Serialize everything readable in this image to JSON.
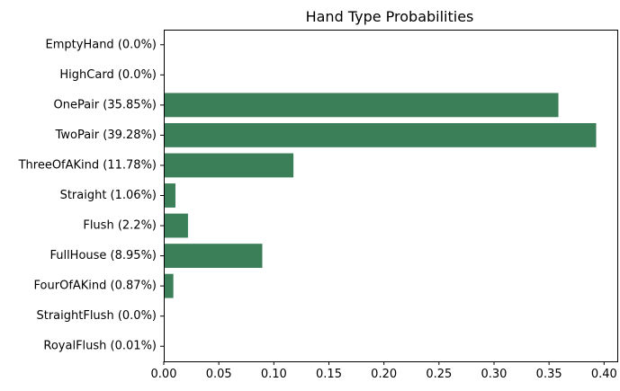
{
  "chart_data": {
    "type": "bar",
    "orientation": "horizontal",
    "title": "Hand Type Probabilities",
    "xlabel": "",
    "ylabel": "",
    "xlim": [
      0,
      0.412
    ],
    "x_ticks": [
      "0.00",
      "0.05",
      "0.10",
      "0.15",
      "0.20",
      "0.25",
      "0.30",
      "0.35",
      "0.40"
    ],
    "x_tick_values": [
      0,
      0.05,
      0.1,
      0.15,
      0.2,
      0.25,
      0.3,
      0.35,
      0.4
    ],
    "grid": false,
    "bar_color": "#3a7f57",
    "categories": [
      "EmptyHand (0.0%)",
      "HighCard (0.0%)",
      "OnePair (35.85%)",
      "TwoPair (39.28%)",
      "ThreeOfAKind (11.78%)",
      "Straight (1.06%)",
      "Flush (2.2%)",
      "FullHouse (8.95%)",
      "FourOfAKind (0.87%)",
      "StraightFlush (0.0%)",
      "RoyalFlush (0.01%)"
    ],
    "values": [
      0.0,
      0.0,
      0.3585,
      0.3928,
      0.1178,
      0.0106,
      0.022,
      0.0895,
      0.0087,
      0.0,
      0.0001
    ]
  }
}
